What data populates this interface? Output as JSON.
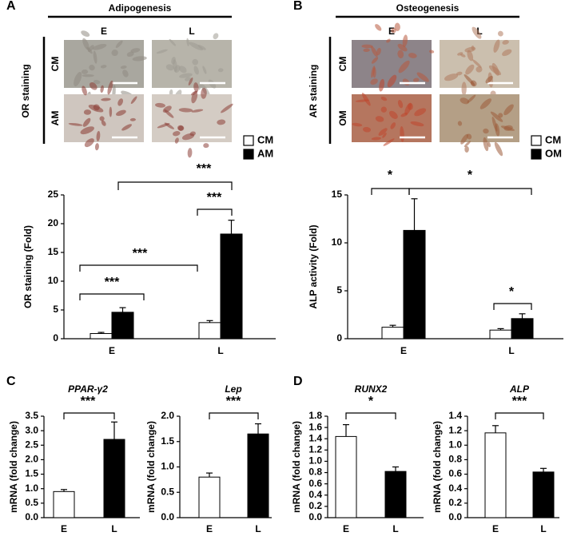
{
  "panel_labels": [
    "A",
    "B",
    "C",
    "D"
  ],
  "image_panels": [
    {
      "title": "Adipogenesis",
      "columns": [
        "E",
        "L"
      ],
      "rows": [
        "CM",
        "AM"
      ],
      "ylabel": "OR staining"
    },
    {
      "title": "Osteogenesis",
      "columns": [
        "E",
        "L"
      ],
      "rows": [
        "CM",
        "OM"
      ],
      "ylabel": "AR staining"
    }
  ],
  "chart_data": [
    {
      "type": "bar",
      "categories": [
        "E",
        "L"
      ],
      "ylabel": "OR staining (Fold)",
      "series": [
        {
          "name": "CM",
          "color": "#ffffff",
          "values": [
            0.9,
            2.8
          ],
          "errors": [
            0.2,
            0.35
          ]
        },
        {
          "name": "AM",
          "color": "#000000",
          "values": [
            4.6,
            18.2
          ],
          "errors": [
            0.8,
            2.4
          ]
        }
      ],
      "ylim": [
        0,
        25
      ],
      "yticks": [
        0,
        5,
        10,
        15,
        20,
        25
      ],
      "legend": "top-right",
      "annotations": [
        "***",
        "***",
        "***",
        "***"
      ]
    },
    {
      "type": "bar",
      "categories": [
        "E",
        "L"
      ],
      "ylabel": "ALP activity (Fold)",
      "series": [
        {
          "name": "CM",
          "color": "#ffffff",
          "values": [
            1.2,
            0.9
          ],
          "errors": [
            0.2,
            0.15
          ]
        },
        {
          "name": "OM",
          "color": "#000000",
          "values": [
            11.3,
            2.1
          ],
          "errors": [
            3.3,
            0.5
          ]
        }
      ],
      "ylim": [
        0,
        15
      ],
      "yticks": [
        0,
        5,
        10,
        15
      ],
      "legend": "top-right",
      "annotations": [
        "*",
        "*",
        "*"
      ]
    },
    {
      "type": "bar",
      "title": "PPAR-γ2",
      "categories": [
        "E",
        "L"
      ],
      "ylabel": "mRNA (fold change)",
      "values": [
        0.9,
        2.7
      ],
      "errors": [
        0.07,
        0.6
      ],
      "colors": [
        "#ffffff",
        "#000000"
      ],
      "ylim": [
        0,
        3.5
      ],
      "yticks": [
        {
          "value": 0,
          "label": "0.0"
        },
        0.5,
        {
          "value": 1,
          "label": "1.0"
        },
        1.5,
        {
          "value": 2,
          "label": "2.0"
        },
        2.5,
        {
          "value": 3,
          "label": "3.0"
        },
        3.5
      ],
      "annotations": [
        "***"
      ]
    },
    {
      "type": "bar",
      "title": "Lep",
      "categories": [
        "E",
        "L"
      ],
      "ylabel": "mRNA (fold change)",
      "values": [
        0.8,
        1.65
      ],
      "errors": [
        0.08,
        0.2
      ],
      "colors": [
        "#ffffff",
        "#000000"
      ],
      "ylim": [
        0,
        2
      ],
      "yticks": [
        {
          "value": 0,
          "label": "0.0"
        },
        0.5,
        {
          "value": 1,
          "label": "1.0"
        },
        1.5,
        {
          "value": 2,
          "label": "2.0"
        }
      ],
      "annotations": [
        "***"
      ]
    },
    {
      "type": "bar",
      "title": "RUNX2",
      "categories": [
        "E",
        "L"
      ],
      "ylabel": "mRNA (fold change)",
      "values": [
        1.44,
        0.82
      ],
      "errors": [
        0.21,
        0.08
      ],
      "colors": [
        "#ffffff",
        "#000000"
      ],
      "ylim": [
        0,
        1.8
      ],
      "yticks": [
        {
          "value": 0,
          "label": "0.0"
        },
        0.2,
        0.4,
        0.6,
        0.8,
        {
          "value": 1,
          "label": "1.0"
        },
        1.2,
        1.4,
        1.6,
        1.8
      ],
      "annotations": [
        "*"
      ]
    },
    {
      "type": "bar",
      "title": "ALP",
      "categories": [
        "E",
        "L"
      ],
      "ylabel": "mRNA (fold change)",
      "values": [
        1.17,
        0.63
      ],
      "errors": [
        0.1,
        0.05
      ],
      "colors": [
        "#ffffff",
        "#000000"
      ],
      "ylim": [
        0,
        1.4
      ],
      "yticks": [
        {
          "value": 0,
          "label": "0.0"
        },
        0.2,
        0.4,
        0.6,
        0.8,
        {
          "value": 1,
          "label": "1.0"
        },
        1.2,
        1.4
      ],
      "annotations": [
        "***"
      ]
    }
  ]
}
